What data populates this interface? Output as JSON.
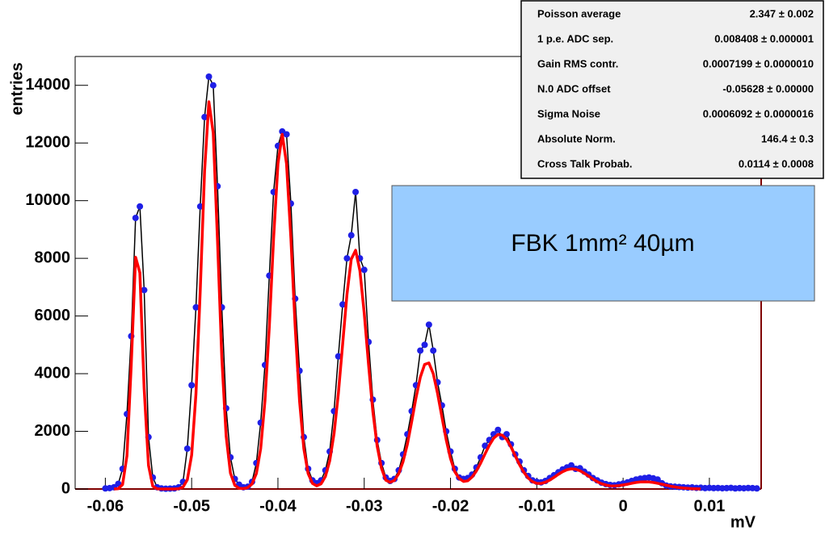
{
  "chart_data": {
    "type": "scatter",
    "x_label": "mV",
    "y_label": "entries",
    "annotation": "FBK 1mm² 40µm",
    "xlim": [
      -0.0635,
      0.016
    ],
    "ylim": [
      0,
      15000
    ],
    "xticks": [
      -0.06,
      -0.05,
      -0.04,
      -0.03,
      -0.02,
      -0.01,
      0,
      0.01
    ],
    "yticks": [
      0,
      2000,
      4000,
      6000,
      8000,
      10000,
      12000,
      14000
    ],
    "frame_color": "#800000",
    "annotation_color": "#99ccff",
    "stats": [
      {
        "label": "Poisson average",
        "value": "2.347 ± 0.002"
      },
      {
        "label": "1 p.e. ADC sep.",
        "value": "0.008408 ± 0.000001"
      },
      {
        "label": "Gain RMS contr.",
        "value": "0.0007199 ± 0.0000010"
      },
      {
        "label": "N.0 ADC offset",
        "value": "-0.05628 ± 0.00000"
      },
      {
        "label": "Sigma Noise",
        "value": "0.0006092 ± 0.0000016"
      },
      {
        "label": "Absolute Norm.",
        "value": "146.4 ± 0.3"
      },
      {
        "label": "Cross Talk Probab.",
        "value": "0.0114 ± 0.0008"
      }
    ],
    "x": [
      -0.06,
      -0.0595,
      -0.059,
      -0.0585,
      -0.058,
      -0.0575,
      -0.057,
      -0.0565,
      -0.056,
      -0.0555,
      -0.055,
      -0.0545,
      -0.054,
      -0.0535,
      -0.053,
      -0.0525,
      -0.052,
      -0.0515,
      -0.051,
      -0.0505,
      -0.05,
      -0.0495,
      -0.049,
      -0.0485,
      -0.048,
      -0.0475,
      -0.047,
      -0.0465,
      -0.046,
      -0.0455,
      -0.045,
      -0.0445,
      -0.044,
      -0.0435,
      -0.043,
      -0.0425,
      -0.042,
      -0.0415,
      -0.041,
      -0.0405,
      -0.04,
      -0.0395,
      -0.039,
      -0.0385,
      -0.038,
      -0.0375,
      -0.037,
      -0.0365,
      -0.036,
      -0.0355,
      -0.035,
      -0.0345,
      -0.034,
      -0.0335,
      -0.033,
      -0.0325,
      -0.032,
      -0.0315,
      -0.031,
      -0.0305,
      -0.03,
      -0.0295,
      -0.029,
      -0.0285,
      -0.028,
      -0.0275,
      -0.027,
      -0.0265,
      -0.026,
      -0.0255,
      -0.025,
      -0.0245,
      -0.024,
      -0.0235,
      -0.023,
      -0.0225,
      -0.022,
      -0.0215,
      -0.021,
      -0.0205,
      -0.02,
      -0.0195,
      -0.019,
      -0.0185,
      -0.018,
      -0.0175,
      -0.017,
      -0.0165,
      -0.016,
      -0.0155,
      -0.015,
      -0.0145,
      -0.014,
      -0.0135,
      -0.013,
      -0.0125,
      -0.012,
      -0.0115,
      -0.011,
      -0.0105,
      -0.01,
      -0.0095,
      -0.009,
      -0.0085,
      -0.008,
      -0.0075,
      -0.007,
      -0.0065,
      -0.006,
      -0.0055,
      -0.005,
      -0.0045,
      -0.004,
      -0.0035,
      -0.003,
      -0.0025,
      -0.002,
      -0.0015,
      -0.001,
      -0.0005,
      0,
      0.0005,
      0.001,
      0.0015,
      0.002,
      0.0025,
      0.003,
      0.0035,
      0.004,
      0.0045,
      0.005,
      0.0055,
      0.006,
      0.0065,
      0.007,
      0.0075,
      0.008,
      0.0085,
      0.009,
      0.0095,
      0.01,
      0.0105,
      0.011,
      0.0115,
      0.012,
      0.0125,
      0.013,
      0.0135,
      0.014,
      0.0145,
      0.015,
      0.0155
    ],
    "series": [
      {
        "type": "points",
        "color": "#1f1fe6",
        "line_color": "#000000",
        "values": [
          20,
          30,
          60,
          180,
          700,
          2600,
          5300,
          9400,
          9800,
          6900,
          1800,
          400,
          60,
          20,
          10,
          15,
          20,
          60,
          250,
          1400,
          3600,
          6300,
          9800,
          12900,
          14300,
          14000,
          10500,
          6300,
          2800,
          1100,
          350,
          150,
          60,
          80,
          250,
          900,
          2300,
          4300,
          7400,
          10300,
          11900,
          12400,
          12300,
          9900,
          6600,
          4100,
          1800,
          700,
          300,
          200,
          300,
          650,
          1300,
          2700,
          4600,
          6400,
          8000,
          8800,
          10300,
          8000,
          7600,
          5100,
          3100,
          1700,
          900,
          400,
          280,
          350,
          650,
          1200,
          1900,
          2700,
          3600,
          4800,
          5000,
          5700,
          4800,
          3700,
          2900,
          2000,
          1300,
          700,
          400,
          350,
          380,
          500,
          750,
          1100,
          1500,
          1700,
          1900,
          2050,
          1800,
          1900,
          1550,
          1200,
          950,
          650,
          450,
          300,
          250,
          230,
          280,
          380,
          480,
          580,
          680,
          750,
          820,
          700,
          720,
          600,
          500,
          380,
          300,
          220,
          170,
          140,
          130,
          160,
          190,
          230,
          280,
          330,
          360,
          380,
          400,
          370,
          330,
          200,
          120,
          90,
          80,
          70,
          60,
          50,
          55,
          40,
          45,
          30,
          40,
          30,
          35,
          25,
          30,
          40,
          20,
          30,
          25,
          35,
          30,
          20
        ]
      },
      {
        "type": "line",
        "color": "#ff0000",
        "values": [
          null,
          null,
          0,
          10,
          153,
          1150,
          4300,
          8040,
          7500,
          3490,
          816,
          94,
          5,
          0,
          0,
          0,
          1,
          10,
          66,
          318,
          1180,
          3290,
          6880,
          11040,
          13430,
          12350,
          8610,
          4560,
          1830,
          550,
          128,
          25,
          14,
          48,
          174,
          540,
          1400,
          3060,
          5630,
          8700,
          11280,
          12300,
          11280,
          8700,
          5630,
          3060,
          1400,
          540,
          192,
          108,
          181,
          435,
          971,
          1920,
          3300,
          5040,
          6750,
          7970,
          8280,
          7570,
          6090,
          4320,
          2700,
          1480,
          720,
          305,
          233,
          299,
          535,
          950,
          1560,
          2340,
          3160,
          3880,
          4320,
          4370,
          4000,
          3320,
          2500,
          1710,
          1060,
          595,
          366,
          264,
          286,
          413,
          626,
          901,
          1220,
          1520,
          1760,
          1890,
          1870,
          1720,
          1460,
          1150,
          840,
          578,
          381,
          255,
          195,
          194,
          235,
          312,
          407,
          508,
          602,
          669,
          700,
          686,
          633,
          548,
          449,
          347,
          256,
          184,
          136,
          110,
          105,
          116,
          140,
          165,
          198,
          226,
          243,
          250,
          243,
          226,
          198,
          165,
          131,
          98,
          70,
          48,
          31,
          19,
          11,
          6,
          3,
          null,
          null,
          null,
          null,
          null,
          null,
          null,
          null,
          null,
          null,
          null,
          null,
          null
        ]
      }
    ]
  }
}
